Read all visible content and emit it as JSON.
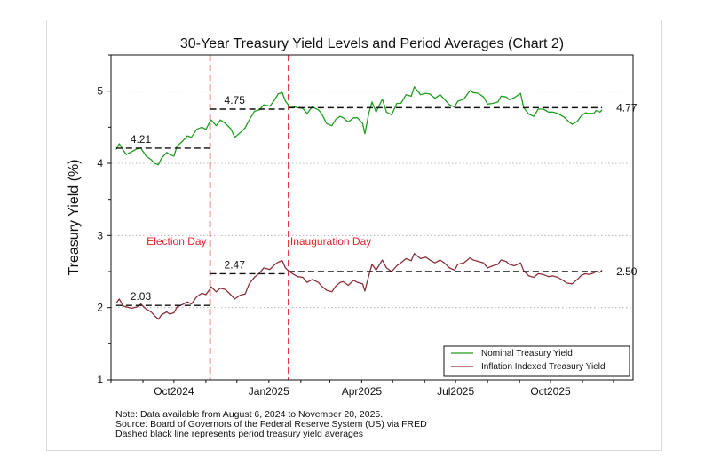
{
  "chart_data": {
    "type": "line",
    "title": "30-Year Treasury Yield Levels and Period Averages (Chart 2)",
    "ylabel": "Treasury Yield (%)",
    "xlabel": "",
    "ylim": [
      1,
      5.5
    ],
    "yticks": [
      1,
      2,
      3,
      4,
      5
    ],
    "xlim": [
      "2024-08-01",
      "2025-12-20"
    ],
    "xticks": [
      {
        "label": "Oct2024",
        "date": "2024-10-01"
      },
      {
        "label": "Jan2025",
        "date": "2025-01-01"
      },
      {
        "label": "Apr2025",
        "date": "2025-04-01"
      },
      {
        "label": "Jul2025",
        "date": "2025-07-01"
      },
      {
        "label": "Oct2025",
        "date": "2025-10-01"
      }
    ],
    "grid": true,
    "events": [
      {
        "label": "Election Day",
        "date": "2024-11-05",
        "color": "#e0242a"
      },
      {
        "label": "Inauguration Day",
        "date": "2025-01-20",
        "color": "#e0242a"
      }
    ],
    "series": [
      {
        "name": "Nominal Treasury Yield",
        "color": "#1f9e1f",
        "points": [
          [
            "2024-08-06",
            4.19
          ],
          [
            "2024-08-09",
            4.27
          ],
          [
            "2024-08-13",
            4.18
          ],
          [
            "2024-08-16",
            4.12
          ],
          [
            "2024-08-21",
            4.16
          ],
          [
            "2024-08-26",
            4.2
          ],
          [
            "2024-08-30",
            4.21
          ],
          [
            "2024-09-04",
            4.1
          ],
          [
            "2024-09-09",
            4.05
          ],
          [
            "2024-09-12",
            4.0
          ],
          [
            "2024-09-16",
            3.98
          ],
          [
            "2024-09-19",
            4.07
          ],
          [
            "2024-09-24",
            4.15
          ],
          [
            "2024-09-27",
            4.12
          ],
          [
            "2024-10-01",
            4.1
          ],
          [
            "2024-10-04",
            4.24
          ],
          [
            "2024-10-09",
            4.3
          ],
          [
            "2024-10-14",
            4.38
          ],
          [
            "2024-10-18",
            4.36
          ],
          [
            "2024-10-23",
            4.47
          ],
          [
            "2024-10-28",
            4.5
          ],
          [
            "2024-11-01",
            4.47
          ],
          [
            "2024-11-05",
            4.58
          ],
          [
            "2024-11-06",
            4.6
          ],
          [
            "2024-11-11",
            4.52
          ],
          [
            "2024-11-15",
            4.6
          ],
          [
            "2024-11-20",
            4.55
          ],
          [
            "2024-11-25",
            4.48
          ],
          [
            "2024-11-29",
            4.36
          ],
          [
            "2024-12-04",
            4.42
          ],
          [
            "2024-12-09",
            4.49
          ],
          [
            "2024-12-13",
            4.6
          ],
          [
            "2024-12-18",
            4.72
          ],
          [
            "2024-12-23",
            4.74
          ],
          [
            "2024-12-27",
            4.81
          ],
          [
            "2025-01-02",
            4.79
          ],
          [
            "2025-01-07",
            4.89
          ],
          [
            "2025-01-10",
            4.96
          ],
          [
            "2025-01-14",
            4.98
          ],
          [
            "2025-01-17",
            4.86
          ],
          [
            "2025-01-21",
            4.79
          ],
          [
            "2025-01-24",
            4.79
          ],
          [
            "2025-01-29",
            4.77
          ],
          [
            "2025-02-03",
            4.76
          ],
          [
            "2025-02-07",
            4.69
          ],
          [
            "2025-02-12",
            4.78
          ],
          [
            "2025-02-18",
            4.74
          ],
          [
            "2025-02-21",
            4.69
          ],
          [
            "2025-02-26",
            4.55
          ],
          [
            "2025-03-03",
            4.52
          ],
          [
            "2025-03-07",
            4.61
          ],
          [
            "2025-03-11",
            4.65
          ],
          [
            "2025-03-14",
            4.63
          ],
          [
            "2025-03-19",
            4.57
          ],
          [
            "2025-03-24",
            4.63
          ],
          [
            "2025-03-28",
            4.63
          ],
          [
            "2025-04-02",
            4.55
          ],
          [
            "2025-04-04",
            4.41
          ],
          [
            "2025-04-08",
            4.7
          ],
          [
            "2025-04-11",
            4.85
          ],
          [
            "2025-04-15",
            4.71
          ],
          [
            "2025-04-21",
            4.89
          ],
          [
            "2025-04-25",
            4.71
          ],
          [
            "2025-04-30",
            4.67
          ],
          [
            "2025-05-05",
            4.83
          ],
          [
            "2025-05-09",
            4.83
          ],
          [
            "2025-05-14",
            4.95
          ],
          [
            "2025-05-19",
            4.93
          ],
          [
            "2025-05-22",
            5.06
          ],
          [
            "2025-05-28",
            4.95
          ],
          [
            "2025-06-02",
            4.97
          ],
          [
            "2025-06-06",
            4.96
          ],
          [
            "2025-06-11",
            4.9
          ],
          [
            "2025-06-16",
            4.95
          ],
          [
            "2025-06-20",
            4.89
          ],
          [
            "2025-06-25",
            4.81
          ],
          [
            "2025-06-30",
            4.78
          ],
          [
            "2025-07-03",
            4.86
          ],
          [
            "2025-07-09",
            4.89
          ],
          [
            "2025-07-15",
            5.01
          ],
          [
            "2025-07-18",
            4.98
          ],
          [
            "2025-07-23",
            4.97
          ],
          [
            "2025-07-28",
            4.92
          ],
          [
            "2025-08-01",
            4.82
          ],
          [
            "2025-08-06",
            4.83
          ],
          [
            "2025-08-11",
            4.85
          ],
          [
            "2025-08-14",
            4.93
          ],
          [
            "2025-08-19",
            4.92
          ],
          [
            "2025-08-22",
            4.88
          ],
          [
            "2025-08-27",
            4.91
          ],
          [
            "2025-09-02",
            4.97
          ],
          [
            "2025-09-05",
            4.77
          ],
          [
            "2025-09-10",
            4.68
          ],
          [
            "2025-09-15",
            4.65
          ],
          [
            "2025-09-19",
            4.75
          ],
          [
            "2025-09-24",
            4.75
          ],
          [
            "2025-09-29",
            4.71
          ],
          [
            "2025-10-03",
            4.71
          ],
          [
            "2025-10-08",
            4.69
          ],
          [
            "2025-10-14",
            4.64
          ],
          [
            "2025-10-17",
            4.6
          ],
          [
            "2025-10-22",
            4.54
          ],
          [
            "2025-10-27",
            4.58
          ],
          [
            "2025-10-31",
            4.66
          ],
          [
            "2025-11-04",
            4.7
          ],
          [
            "2025-11-07",
            4.69
          ],
          [
            "2025-11-12",
            4.69
          ],
          [
            "2025-11-14",
            4.73
          ],
          [
            "2025-11-18",
            4.71
          ],
          [
            "2025-11-20",
            4.74
          ]
        ]
      },
      {
        "name": "Inflation Indexed Treasury Yield",
        "color": "#8c2f3a",
        "points": [
          [
            "2024-08-06",
            2.06
          ],
          [
            "2024-08-09",
            2.12
          ],
          [
            "2024-08-13",
            2.02
          ],
          [
            "2024-08-16",
            2.01
          ],
          [
            "2024-08-21",
            1.99
          ],
          [
            "2024-08-26",
            2.01
          ],
          [
            "2024-08-30",
            2.05
          ],
          [
            "2024-09-04",
            1.98
          ],
          [
            "2024-09-09",
            1.94
          ],
          [
            "2024-09-12",
            1.89
          ],
          [
            "2024-09-16",
            1.84
          ],
          [
            "2024-09-19",
            1.9
          ],
          [
            "2024-09-24",
            1.94
          ],
          [
            "2024-09-27",
            1.91
          ],
          [
            "2024-10-01",
            1.93
          ],
          [
            "2024-10-04",
            2.01
          ],
          [
            "2024-10-09",
            2.04
          ],
          [
            "2024-10-14",
            2.08
          ],
          [
            "2024-10-18",
            2.05
          ],
          [
            "2024-10-23",
            2.15
          ],
          [
            "2024-10-28",
            2.2
          ],
          [
            "2024-11-01",
            2.18
          ],
          [
            "2024-11-05",
            2.26
          ],
          [
            "2024-11-06",
            2.29
          ],
          [
            "2024-11-11",
            2.22
          ],
          [
            "2024-11-15",
            2.27
          ],
          [
            "2024-11-20",
            2.25
          ],
          [
            "2024-11-25",
            2.18
          ],
          [
            "2024-11-29",
            2.12
          ],
          [
            "2024-12-04",
            2.17
          ],
          [
            "2024-12-09",
            2.19
          ],
          [
            "2024-12-13",
            2.33
          ],
          [
            "2024-12-18",
            2.42
          ],
          [
            "2024-12-23",
            2.48
          ],
          [
            "2024-12-27",
            2.55
          ],
          [
            "2025-01-02",
            2.53
          ],
          [
            "2025-01-07",
            2.6
          ],
          [
            "2025-01-10",
            2.63
          ],
          [
            "2025-01-14",
            2.65
          ],
          [
            "2025-01-17",
            2.55
          ],
          [
            "2025-01-21",
            2.5
          ],
          [
            "2025-01-24",
            2.47
          ],
          [
            "2025-01-29",
            2.43
          ],
          [
            "2025-02-03",
            2.42
          ],
          [
            "2025-02-07",
            2.35
          ],
          [
            "2025-02-12",
            2.39
          ],
          [
            "2025-02-18",
            2.35
          ],
          [
            "2025-02-21",
            2.3
          ],
          [
            "2025-02-26",
            2.24
          ],
          [
            "2025-03-03",
            2.22
          ],
          [
            "2025-03-07",
            2.3
          ],
          [
            "2025-03-11",
            2.35
          ],
          [
            "2025-03-14",
            2.36
          ],
          [
            "2025-03-19",
            2.31
          ],
          [
            "2025-03-24",
            2.38
          ],
          [
            "2025-03-28",
            2.35
          ],
          [
            "2025-04-02",
            2.33
          ],
          [
            "2025-04-04",
            2.23
          ],
          [
            "2025-04-08",
            2.45
          ],
          [
            "2025-04-11",
            2.6
          ],
          [
            "2025-04-15",
            2.52
          ],
          [
            "2025-04-21",
            2.66
          ],
          [
            "2025-04-25",
            2.55
          ],
          [
            "2025-04-30",
            2.5
          ],
          [
            "2025-05-05",
            2.58
          ],
          [
            "2025-05-09",
            2.62
          ],
          [
            "2025-05-14",
            2.68
          ],
          [
            "2025-05-19",
            2.65
          ],
          [
            "2025-05-22",
            2.75
          ],
          [
            "2025-05-28",
            2.68
          ],
          [
            "2025-06-02",
            2.7
          ],
          [
            "2025-06-06",
            2.66
          ],
          [
            "2025-06-11",
            2.62
          ],
          [
            "2025-06-16",
            2.66
          ],
          [
            "2025-06-20",
            2.62
          ],
          [
            "2025-06-25",
            2.55
          ],
          [
            "2025-06-30",
            2.52
          ],
          [
            "2025-07-03",
            2.6
          ],
          [
            "2025-07-09",
            2.62
          ],
          [
            "2025-07-15",
            2.69
          ],
          [
            "2025-07-18",
            2.66
          ],
          [
            "2025-07-23",
            2.64
          ],
          [
            "2025-07-28",
            2.62
          ],
          [
            "2025-08-01",
            2.55
          ],
          [
            "2025-08-06",
            2.58
          ],
          [
            "2025-08-11",
            2.6
          ],
          [
            "2025-08-14",
            2.66
          ],
          [
            "2025-08-19",
            2.64
          ],
          [
            "2025-08-22",
            2.6
          ],
          [
            "2025-08-27",
            2.58
          ],
          [
            "2025-09-02",
            2.62
          ],
          [
            "2025-09-05",
            2.51
          ],
          [
            "2025-09-10",
            2.44
          ],
          [
            "2025-09-15",
            2.42
          ],
          [
            "2025-09-19",
            2.47
          ],
          [
            "2025-09-24",
            2.46
          ],
          [
            "2025-09-29",
            2.43
          ],
          [
            "2025-10-03",
            2.44
          ],
          [
            "2025-10-08",
            2.42
          ],
          [
            "2025-10-14",
            2.37
          ],
          [
            "2025-10-17",
            2.34
          ],
          [
            "2025-10-22",
            2.33
          ],
          [
            "2025-10-27",
            2.39
          ],
          [
            "2025-10-31",
            2.45
          ],
          [
            "2025-11-04",
            2.47
          ],
          [
            "2025-11-07",
            2.46
          ],
          [
            "2025-11-12",
            2.48
          ],
          [
            "2025-11-14",
            2.5
          ],
          [
            "2025-11-18",
            2.49
          ],
          [
            "2025-11-20",
            2.52
          ]
        ]
      }
    ],
    "period_averages": [
      {
        "series": "Nominal Treasury Yield",
        "start": "2024-08-06",
        "end": "2024-11-05",
        "value": 4.21,
        "label": "4.21"
      },
      {
        "series": "Nominal Treasury Yield",
        "start": "2024-11-05",
        "end": "2025-01-20",
        "value": 4.75,
        "label": "4.75"
      },
      {
        "series": "Nominal Treasury Yield",
        "start": "2025-01-20",
        "end": "2025-11-20",
        "value": 4.77,
        "label": "4.77"
      },
      {
        "series": "Inflation Indexed Treasury Yield",
        "start": "2024-08-06",
        "end": "2024-11-05",
        "value": 2.03,
        "label": "2.03"
      },
      {
        "series": "Inflation Indexed Treasury Yield",
        "start": "2024-11-05",
        "end": "2025-01-20",
        "value": 2.47,
        "label": "2.47"
      },
      {
        "series": "Inflation Indexed Treasury Yield",
        "start": "2025-01-20",
        "end": "2025-11-20",
        "value": 2.5,
        "label": "2.50"
      }
    ],
    "legend": {
      "position": "bottom-right",
      "entries": [
        "Nominal Treasury Yield",
        "Inflation Indexed Treasury Yield"
      ]
    },
    "notes": [
      "Note: Data available from August 6, 2024 to November 20, 2025.",
      "Source: Board of Governors of the Federal Reserve System (US) via FRED",
      "Dashed black line represents period treasury yield averages"
    ]
  }
}
